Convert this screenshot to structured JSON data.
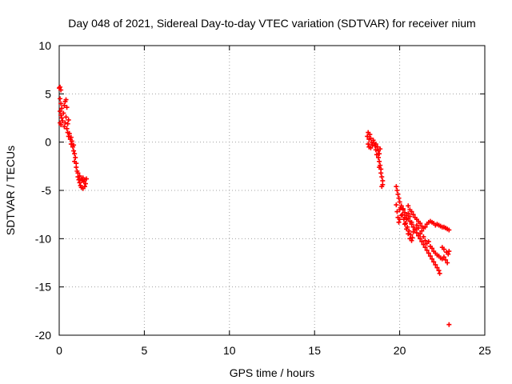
{
  "chart_data": {
    "type": "scatter",
    "title": "Day 048 of 2021, Sidereal Day-to-day VTEC variation (SDTVAR) for receiver nium",
    "xlabel": "GPS time / hours",
    "ylabel": "SDTVAR / TECUs",
    "xlim": [
      0,
      25
    ],
    "ylim": [
      -20,
      10
    ],
    "xticks": [
      0,
      5,
      10,
      15,
      20,
      25
    ],
    "yticks": [
      -20,
      -15,
      -10,
      -5,
      0,
      5,
      10
    ],
    "grid": true,
    "legend": "none",
    "marker": "plus",
    "series": [
      {
        "name": "SDTVAR",
        "color": "#ff0000",
        "points": [
          [
            0.0,
            5.6
          ],
          [
            0.05,
            5.7
          ],
          [
            0.1,
            5.4
          ],
          [
            0.05,
            4.5
          ],
          [
            0.1,
            4.0
          ],
          [
            0.15,
            3.5
          ],
          [
            0.05,
            3.2
          ],
          [
            0.1,
            2.8
          ],
          [
            0.15,
            2.5
          ],
          [
            0.05,
            2.0
          ],
          [
            0.1,
            1.8
          ],
          [
            0.2,
            2.2
          ],
          [
            0.25,
            3.0
          ],
          [
            0.3,
            3.8
          ],
          [
            0.35,
            4.2
          ],
          [
            0.4,
            4.4
          ],
          [
            0.45,
            3.6
          ],
          [
            0.4,
            2.6
          ],
          [
            0.35,
            2.0
          ],
          [
            0.3,
            1.6
          ],
          [
            0.45,
            1.4
          ],
          [
            0.5,
            1.9
          ],
          [
            0.55,
            2.3
          ],
          [
            0.5,
            1.0
          ],
          [
            0.55,
            0.6
          ],
          [
            0.6,
            0.9
          ],
          [
            0.65,
            0.3
          ],
          [
            0.7,
            0.5
          ],
          [
            0.7,
            -0.2
          ],
          [
            0.75,
            0.1
          ],
          [
            0.8,
            -0.5
          ],
          [
            0.85,
            -0.3
          ],
          [
            0.85,
            -0.9
          ],
          [
            0.9,
            -1.2
          ],
          [
            0.95,
            -1.6
          ],
          [
            0.9,
            -2.0
          ],
          [
            1.0,
            -2.2
          ],
          [
            1.0,
            -2.6
          ],
          [
            1.05,
            -3.0
          ],
          [
            1.1,
            -3.2
          ],
          [
            1.1,
            -3.6
          ],
          [
            1.15,
            -3.9
          ],
          [
            1.2,
            -4.2
          ],
          [
            1.25,
            -4.5
          ],
          [
            1.3,
            -4.7
          ],
          [
            1.2,
            -3.5
          ],
          [
            1.3,
            -3.8
          ],
          [
            1.35,
            -4.0
          ],
          [
            1.4,
            -3.7
          ],
          [
            1.45,
            -4.1
          ],
          [
            1.5,
            -3.9
          ],
          [
            1.5,
            -4.6
          ],
          [
            1.55,
            -4.3
          ],
          [
            1.6,
            -3.8
          ],
          [
            1.4,
            -4.8
          ],
          [
            18.1,
            0.6
          ],
          [
            18.15,
            1.0
          ],
          [
            18.2,
            0.3
          ],
          [
            18.15,
            -0.2
          ],
          [
            18.2,
            -0.5
          ],
          [
            18.25,
            0.8
          ],
          [
            18.3,
            0.4
          ],
          [
            18.35,
            0.0
          ],
          [
            18.4,
            -0.3
          ],
          [
            18.3,
            -0.6
          ],
          [
            18.45,
            0.2
          ],
          [
            18.5,
            -0.1
          ],
          [
            18.55,
            -0.4
          ],
          [
            18.6,
            -0.8
          ],
          [
            18.6,
            -0.2
          ],
          [
            18.7,
            -0.5
          ],
          [
            18.75,
            -0.9
          ],
          [
            18.65,
            -1.3
          ],
          [
            18.8,
            -1.2
          ],
          [
            18.85,
            -0.7
          ],
          [
            18.75,
            -1.6
          ],
          [
            18.8,
            -2.0
          ],
          [
            18.85,
            -2.4
          ],
          [
            18.9,
            -2.8
          ],
          [
            18.9,
            -3.2
          ],
          [
            18.95,
            -3.6
          ],
          [
            19.0,
            -4.0
          ],
          [
            19.0,
            -4.4
          ],
          [
            18.95,
            -4.6
          ],
          [
            18.8,
            -2.6
          ],
          [
            19.8,
            -4.6
          ],
          [
            19.85,
            -5.0
          ],
          [
            19.9,
            -5.4
          ],
          [
            19.95,
            -5.8
          ],
          [
            20.0,
            -6.2
          ],
          [
            20.1,
            -6.6
          ],
          [
            20.2,
            -7.0
          ],
          [
            20.3,
            -7.3
          ],
          [
            20.4,
            -7.6
          ],
          [
            20.5,
            -7.9
          ],
          [
            20.6,
            -8.2
          ],
          [
            20.7,
            -8.5
          ],
          [
            20.8,
            -8.8
          ],
          [
            20.9,
            -9.1
          ],
          [
            21.0,
            -9.4
          ],
          [
            21.1,
            -9.7
          ],
          [
            21.2,
            -10.0
          ],
          [
            21.3,
            -10.3
          ],
          [
            21.4,
            -10.6
          ],
          [
            21.5,
            -10.9
          ],
          [
            21.6,
            -11.2
          ],
          [
            21.7,
            -11.5
          ],
          [
            21.8,
            -11.8
          ],
          [
            21.9,
            -12.1
          ],
          [
            22.0,
            -12.4
          ],
          [
            22.1,
            -12.7
          ],
          [
            22.2,
            -13.0
          ],
          [
            22.3,
            -13.3
          ],
          [
            22.35,
            -13.6
          ],
          [
            19.8,
            -6.5
          ],
          [
            19.85,
            -7.2
          ],
          [
            19.9,
            -7.8
          ],
          [
            19.95,
            -8.3
          ],
          [
            20.0,
            -7.0
          ],
          [
            20.05,
            -6.8
          ],
          [
            20.15,
            -7.5
          ],
          [
            20.25,
            -8.0
          ],
          [
            20.35,
            -8.4
          ],
          [
            20.45,
            -8.8
          ],
          [
            20.55,
            -9.2
          ],
          [
            20.65,
            -9.6
          ],
          [
            20.75,
            -9.9
          ],
          [
            20.2,
            -6.9
          ],
          [
            20.3,
            -7.8
          ],
          [
            20.4,
            -8.0
          ],
          [
            20.5,
            -7.4
          ],
          [
            20.6,
            -7.7
          ],
          [
            20.7,
            -8.3
          ],
          [
            20.8,
            -9.3
          ],
          [
            20.9,
            -9.0
          ],
          [
            21.0,
            -8.6
          ],
          [
            21.1,
            -8.9
          ],
          [
            21.2,
            -9.5
          ],
          [
            21.3,
            -9.2
          ],
          [
            21.4,
            -9.8
          ],
          [
            21.5,
            -10.2
          ],
          [
            21.6,
            -10.5
          ],
          [
            21.7,
            -10.3
          ],
          [
            21.8,
            -10.8
          ],
          [
            21.9,
            -11.0
          ],
          [
            22.0,
            -11.3
          ],
          [
            22.1,
            -11.5
          ],
          [
            22.2,
            -11.7
          ],
          [
            22.3,
            -11.8
          ],
          [
            22.4,
            -12.0
          ],
          [
            22.5,
            -12.1
          ],
          [
            22.6,
            -11.9
          ],
          [
            22.7,
            -12.2
          ],
          [
            22.8,
            -12.5
          ],
          [
            22.9,
            -11.3
          ],
          [
            22.85,
            -11.6
          ],
          [
            22.75,
            -11.4
          ],
          [
            22.6,
            -11.1
          ],
          [
            22.5,
            -10.9
          ],
          [
            21.3,
            -8.7
          ],
          [
            21.4,
            -8.9
          ],
          [
            21.5,
            -8.8
          ],
          [
            21.6,
            -8.5
          ],
          [
            21.7,
            -8.3
          ],
          [
            21.8,
            -8.2
          ],
          [
            21.9,
            -8.3
          ],
          [
            22.0,
            -8.4
          ],
          [
            22.1,
            -8.6
          ],
          [
            22.2,
            -8.5
          ],
          [
            22.3,
            -8.6
          ],
          [
            22.4,
            -8.7
          ],
          [
            22.5,
            -8.8
          ],
          [
            22.6,
            -8.8
          ],
          [
            22.7,
            -8.9
          ],
          [
            22.8,
            -9.0
          ],
          [
            22.9,
            -9.1
          ],
          [
            20.5,
            -6.6
          ],
          [
            20.6,
            -7.0
          ],
          [
            20.7,
            -7.2
          ],
          [
            20.8,
            -7.5
          ],
          [
            20.9,
            -7.8
          ],
          [
            21.0,
            -8.0
          ],
          [
            21.1,
            -8.2
          ],
          [
            21.2,
            -8.4
          ],
          [
            20.3,
            -8.5
          ],
          [
            20.4,
            -9.0
          ],
          [
            20.5,
            -9.5
          ],
          [
            20.6,
            -10.0
          ],
          [
            20.7,
            -10.2
          ],
          [
            20.1,
            -7.6
          ],
          [
            20.0,
            -8.0
          ],
          [
            22.9,
            -18.9
          ]
        ]
      }
    ]
  }
}
